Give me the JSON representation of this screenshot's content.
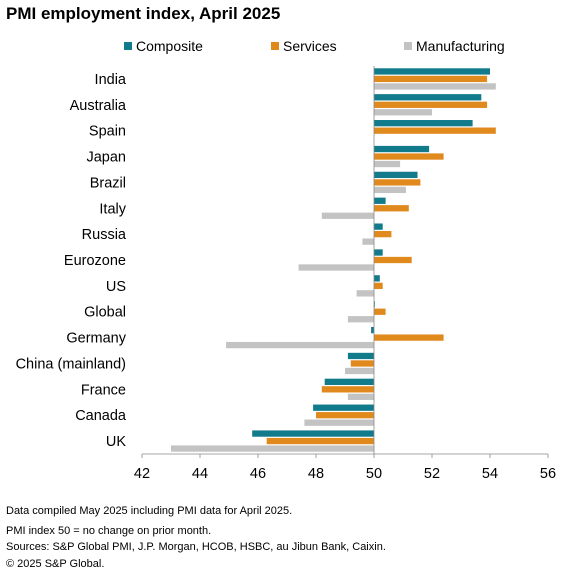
{
  "chart_data": {
    "type": "bar",
    "orientation": "horizontal",
    "title": "PMI employment index, April 2025",
    "xlabel": "",
    "ylabel": "",
    "xlim": [
      42,
      56
    ],
    "xticks": [
      42,
      44,
      46,
      48,
      50,
      52,
      54,
      56
    ],
    "baseline": 50,
    "grid": false,
    "legend_position": "top",
    "categories": [
      "India",
      "Australia",
      "Spain",
      "Japan",
      "Brazil",
      "Italy",
      "Russia",
      "Eurozone",
      "US",
      "Global",
      "Germany",
      "China (mainland)",
      "France",
      "Canada",
      "UK"
    ],
    "series": [
      {
        "name": "Composite",
        "color": "#117a8b",
        "values": [
          54.0,
          53.7,
          53.4,
          51.9,
          51.5,
          50.4,
          50.3,
          50.3,
          50.2,
          50.0,
          49.9,
          49.1,
          48.3,
          47.9,
          45.8
        ]
      },
      {
        "name": "Services",
        "color": "#e08a1e",
        "values": [
          53.9,
          53.9,
          54.2,
          52.4,
          51.6,
          51.2,
          50.6,
          51.3,
          50.3,
          50.4,
          52.4,
          49.2,
          48.2,
          48.0,
          46.3
        ]
      },
      {
        "name": "Manufacturing",
        "color": "#c3c3c3",
        "values": [
          54.2,
          52.0,
          null,
          50.9,
          51.1,
          48.2,
          49.6,
          47.4,
          49.4,
          49.1,
          44.9,
          49.0,
          49.1,
          47.6,
          43.0
        ]
      }
    ]
  },
  "footnotes": {
    "line1": "Data compiled May 2025 including PMI data for April 2025.",
    "line2": "PMI index 50 = no change on prior month.",
    "line3": "Sources: S&P Global PMI, J.P. Morgan, HCOB, HSBC, au Jibun Bank, Caixin.",
    "line4": "© 2025 S&P Global."
  }
}
